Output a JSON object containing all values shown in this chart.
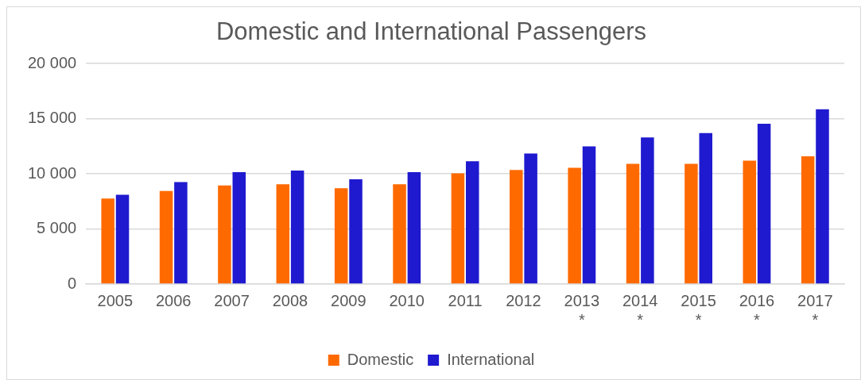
{
  "chart_data": {
    "type": "bar",
    "title": "Domestic and International Passengers",
    "categories": [
      "2005",
      "2006",
      "2007",
      "2008",
      "2009",
      "2010",
      "2011",
      "2012",
      "2013\n*",
      "2014\n*",
      "2015\n*",
      "2016\n*",
      "2017\n*"
    ],
    "series": [
      {
        "name": "Domestic",
        "color": "#ff6a00",
        "values": [
          7750,
          8450,
          8950,
          9050,
          8700,
          9050,
          10050,
          10350,
          10550,
          10900,
          10900,
          11200,
          11600
        ]
      },
      {
        "name": "International",
        "color": "#1f1acf",
        "values": [
          8100,
          9250,
          10150,
          10300,
          9500,
          10150,
          11150,
          11850,
          12500,
          13300,
          13700,
          14550,
          15850
        ]
      }
    ],
    "ylim": [
      0,
      20000
    ],
    "yticks": [
      {
        "value": 0,
        "label": "0"
      },
      {
        "value": 5000,
        "label": "5 000"
      },
      {
        "value": 10000,
        "label": "10 000"
      },
      {
        "value": 15000,
        "label": "15 000"
      },
      {
        "value": 20000,
        "label": "20 000"
      }
    ],
    "grid": "y",
    "legend": "bottom"
  }
}
